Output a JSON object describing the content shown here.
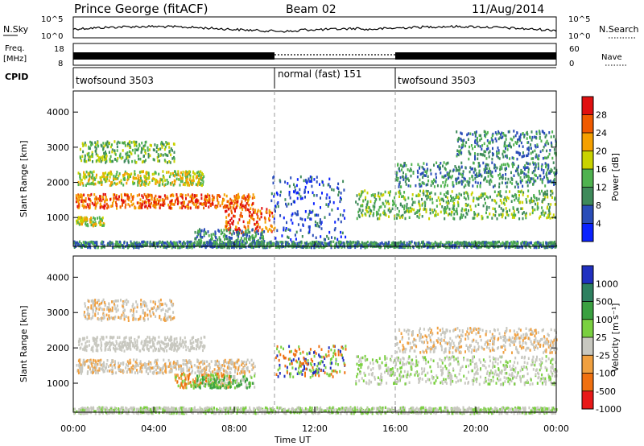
{
  "header": {
    "station": "Prince George (fitACF)",
    "beam": "Beam 02",
    "date": "11/Aug/2014"
  },
  "panels": {
    "nsky_label": "N.Sky",
    "nsky_ticks": [
      "10^5",
      "10^0"
    ],
    "nsearch_label": "N.Search",
    "nsearch_ticks": [
      "10^5",
      "10^0"
    ],
    "freq_label": "Freq.",
    "freq_unit": "[MHz]",
    "freq_ticks": [
      "18",
      "8"
    ],
    "nave_label": "Nave",
    "nave_ticks": [
      "60",
      "0"
    ],
    "cpid_label": "CPID",
    "cpid_segments": [
      {
        "label": "twofsound 3503",
        "start_h": 0,
        "end_h": 10
      },
      {
        "label": "normal (fast) 151",
        "start_h": 10,
        "end_h": 16
      },
      {
        "label": "twofsound 3503",
        "start_h": 16,
        "end_h": 24
      }
    ]
  },
  "chart_data": [
    {
      "type": "heatmap",
      "ylabel": "Slant Range [km]",
      "ylim": [
        180,
        4600
      ],
      "yticks": [
        "1000",
        "2000",
        "3000",
        "4000"
      ],
      "xlim_hours": [
        0,
        24
      ],
      "colorbar": {
        "label": "Power [dB]",
        "ticks": [
          "4",
          "8",
          "12",
          "16",
          "20",
          "24",
          "28"
        ],
        "colors": [
          "#0a22ff",
          "#2a4db8",
          "#3e8a5a",
          "#4fb24f",
          "#c9d200",
          "#f5a000",
          "#f05a00",
          "#e01010"
        ]
      }
    },
    {
      "type": "heatmap",
      "ylabel": "Slant Range [km]",
      "ylim": [
        180,
        4600
      ],
      "yticks": [
        "1000",
        "2000",
        "3000",
        "4000"
      ],
      "xlim_hours": [
        0,
        24
      ],
      "colorbar": {
        "label": "Velocity [m s⁻¹]",
        "ticks": [
          "1000",
          "500",
          "100",
          "25",
          "-25",
          "-100",
          "-500",
          "-1000"
        ],
        "colors": [
          "#2030c0",
          "#2e8060",
          "#3aa040",
          "#7ad040",
          "#c8c8c0",
          "#f0a040",
          "#f07010",
          "#e81818"
        ]
      }
    }
  ],
  "xaxis": {
    "ticks": [
      "00:00",
      "04:00",
      "08:00",
      "12:00",
      "16:00",
      "20:00",
      "00:00"
    ],
    "label": "Time UT"
  }
}
